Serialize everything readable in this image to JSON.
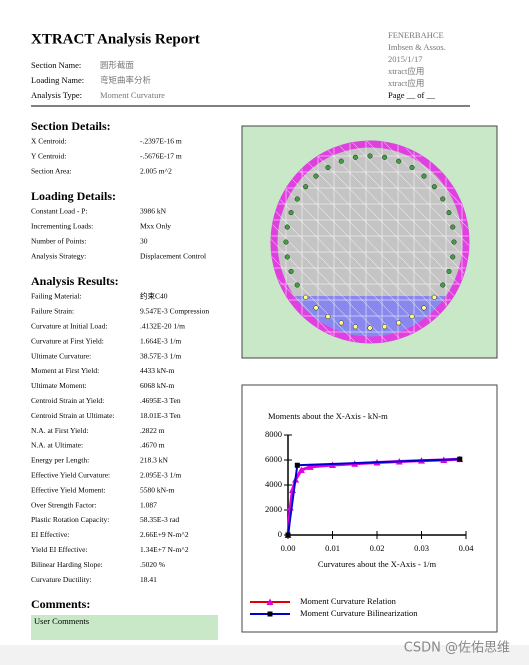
{
  "header": {
    "title": "XTRACT Analysis Report",
    "fields": [
      {
        "label": "Section Name:",
        "value": "圆形截面"
      },
      {
        "label": "Loading Name:",
        "value": "弯矩曲率分析"
      },
      {
        "label": "Analysis Type:",
        "value": "Moment Curvature"
      }
    ],
    "right": [
      "FENERBAHCE",
      "Imbsen & Assos.",
      "2015/1/17",
      "xtract应用",
      "xtract应用",
      "Page __ of __"
    ]
  },
  "sections": [
    {
      "title": "Section Details:",
      "rows": [
        [
          "X Centroid:",
          "-.2397E-16  m"
        ],
        [
          "Y Centroid:",
          "-.5676E-17  m"
        ],
        [
          "Section Area:",
          "2.005  m^2"
        ]
      ]
    },
    {
      "title": "Loading Details:",
      "rows": [
        [
          "Constant Load - P:",
          "3986  kN"
        ],
        [
          "Incrementing Loads:",
          "Mxx Only"
        ],
        [
          "Number of Points:",
          "30"
        ],
        [
          "Analysis Strategy:",
          "Displacement Control"
        ]
      ]
    },
    {
      "title": "Analysis Results:",
      "rows": [
        [
          "Failing Material:",
          "约束C40"
        ],
        [
          "Failure Strain:",
          "9.547E-3  Compression"
        ],
        [
          "Curvature at Initial Load:",
          ".4132E-20  1/m"
        ],
        [
          "Curvature at First Yield:",
          "1.664E-3  1/m"
        ],
        [
          "Ultimate Curvature:",
          "38.57E-3  1/m"
        ],
        [
          "Moment at First Yield:",
          "4433  kN-m"
        ],
        [
          "Ultimate Moment:",
          "6068  kN-m"
        ],
        [
          "Centroid Strain at Yield:",
          ".4695E-3  Ten"
        ],
        [
          "Centroid Strain at Ultimate:",
          "18.01E-3  Ten"
        ],
        [
          "N.A. at First Yield:",
          ".2822  m"
        ],
        [
          "N.A. at Ultimate:",
          ".4670  m"
        ],
        [
          "Energy per Length:",
          "218.3  kN"
        ],
        [
          "Effective Yield Curvature:",
          "2.095E-3  1/m"
        ],
        [
          "Effective Yield Moment:",
          "5580  kN-m"
        ],
        [
          "Over Strength Factor:",
          "1.087"
        ],
        [
          "Plastic Rotation Capacity:",
          "58.35E-3  rad"
        ],
        [
          "EI Effective:",
          "2.66E+9  N-m^2"
        ],
        [
          "Yield EI Effective:",
          "1.34E+7  N-m^2"
        ],
        [
          "Bilinear Harding Slope:",
          ".5020  %"
        ],
        [
          "Curvature Ductility:",
          "18.41"
        ]
      ]
    }
  ],
  "comments": {
    "title": "Comments:",
    "text": "User Comments"
  },
  "watermark": "CSDN @佐佑思维",
  "chart_data": {
    "type": "line",
    "title": "Moments about the X-Axis - kN-m",
    "x_label": "Curvatures about the X-Axis - 1/m",
    "xlim": [
      0,
      0.04
    ],
    "ylim": [
      0,
      8000
    ],
    "xticks": [
      {
        "value": 0,
        "label": "0.00"
      },
      0.01,
      0.02,
      0.03,
      0.04
    ],
    "yticks": [
      0,
      2000,
      4000,
      6000,
      8000
    ],
    "series": [
      {
        "name": "Moment Curvature Relation",
        "color": "#e000e0",
        "x": [
          0,
          0.0005,
          0.001,
          0.0017,
          0.003,
          0.005,
          0.01,
          0.015,
          0.02,
          0.025,
          0.03,
          0.035,
          0.0386
        ],
        "values": [
          0,
          2200,
          3600,
          4433,
          5200,
          5450,
          5600,
          5700,
          5800,
          5880,
          5950,
          6000,
          6068
        ]
      },
      {
        "name": "Moment Curvature Bilinearization",
        "color": "#0000cc",
        "x": [
          0,
          0.002095,
          0.0386
        ],
        "values": [
          0,
          5580,
          6068
        ]
      }
    ]
  }
}
